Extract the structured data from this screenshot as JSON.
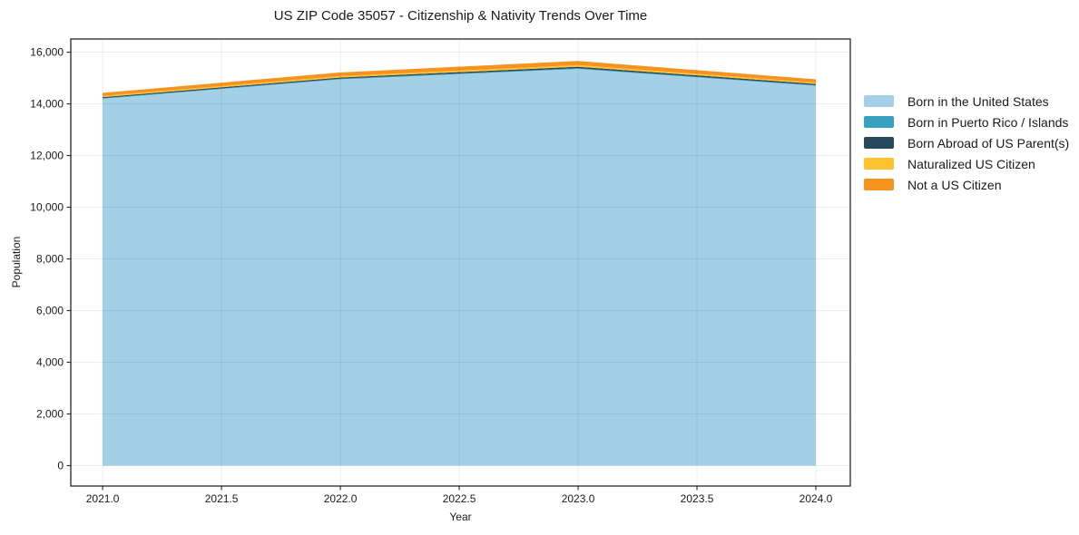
{
  "title": "US ZIP Code 35057 - Citizenship & Nativity Trends Over Time",
  "chart_data": {
    "type": "area",
    "stacked": true,
    "title": "US ZIP Code 35057 - Citizenship & Nativity Trends Over Time",
    "xlabel": "Year",
    "ylabel": "Population",
    "x": [
      2021,
      2022,
      2023,
      2024
    ],
    "series": [
      {
        "name": "Born in the United States",
        "color": "#A3D0E7",
        "values": [
          14200,
          14950,
          15350,
          14700
        ]
      },
      {
        "name": "Born in Puerto Rico / Islands",
        "color": "#38A1C1",
        "values": [
          20,
          25,
          30,
          25
        ]
      },
      {
        "name": "Born Abroad of US Parent(s)",
        "color": "#27475A",
        "values": [
          40,
          45,
          55,
          45
        ]
      },
      {
        "name": "Naturalized US Citizen",
        "color": "#FDC230",
        "values": [
          45,
          55,
          65,
          50
        ]
      },
      {
        "name": "Not a US Citizen",
        "color": "#F6921E",
        "values": [
          120,
          140,
          160,
          130
        ]
      }
    ],
    "xlim": [
      2020.866,
      2024.145
    ],
    "ylim": [
      -790,
      16510
    ],
    "xticks": [
      2021.0,
      2021.5,
      2022.0,
      2022.5,
      2023.0,
      2023.5,
      2024.0
    ],
    "xtick_labels": [
      "2021.0",
      "2021.5",
      "2022.0",
      "2022.5",
      "2023.0",
      "2023.5",
      "2024.0"
    ],
    "yticks": [
      0,
      2000,
      4000,
      6000,
      8000,
      10000,
      12000,
      14000,
      16000
    ],
    "ytick_labels": [
      "0",
      "2,000",
      "4,000",
      "6,000",
      "8,000",
      "10,000",
      "12,000",
      "14,000",
      "16,000"
    ],
    "grid": true,
    "legend_position": "center right outside"
  },
  "colors": {
    "spine": "#262626",
    "grid": "rgba(0,0,0,0.07)",
    "tick_text": "#1a1a1a",
    "background": "#ffffff"
  }
}
